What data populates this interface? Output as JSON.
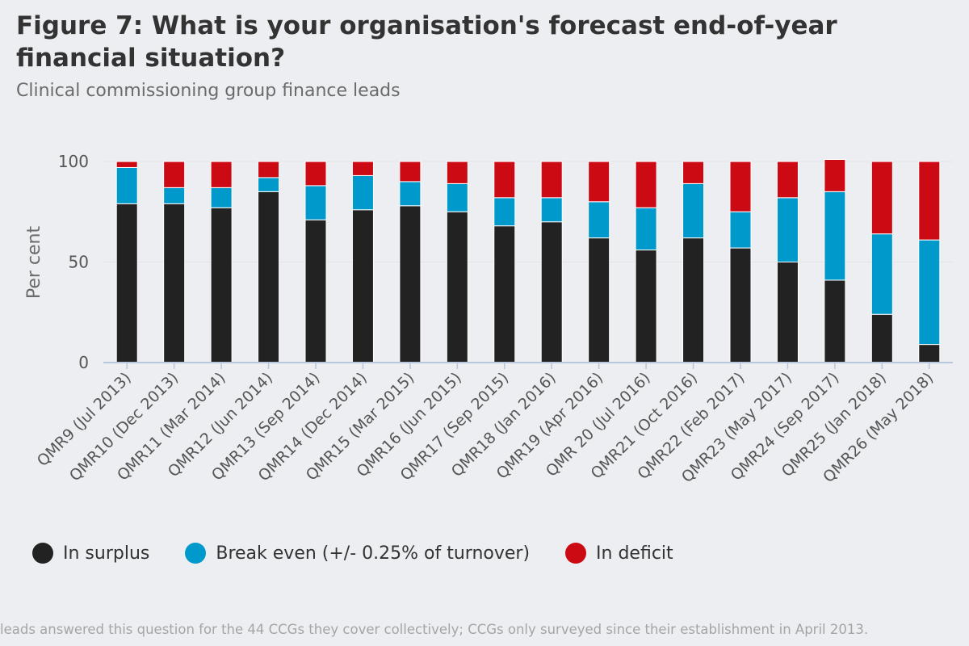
{
  "title": "Figure 7: What is your organisation's forecast end-of-year financial situation?",
  "subtitle": "Clinical commissioning group finance leads",
  "footnote": "leads answered this question for the 44 CCGs they cover collectively; CCGs only surveyed since their establishment in April 2013.",
  "colors": {
    "surplus": "#222222",
    "break_even": "#0099cc",
    "deficit": "#cc0a13",
    "axis": "#b8c8dc",
    "grid": "#e2e4e8",
    "tick_text": "#555555"
  },
  "chart_data": {
    "type": "bar",
    "stacked": true,
    "ylabel": "Per cent",
    "xlabel": "",
    "ylim": [
      0,
      100
    ],
    "yticks": [
      0,
      50,
      100
    ],
    "legend_position": "bottom",
    "categories": [
      "QMR9 (Jul 2013)",
      "QMR10 (Dec 2013)",
      "QMR11 (Mar 2014)",
      "QMR12 (Jun 2014)",
      "QMR13 (Sep 2014)",
      "QMR14 (Dec 2014)",
      "QMR15 (Mar 2015)",
      "QMR16 (Jun 2015)",
      "QMR17 (Sep 2015)",
      "QMR18 (Jan 2016)",
      "QMR19 (Apr 2016)",
      "QMR 20 (Jul 2016)",
      "QMR21 (Oct 2016)",
      "QMR22 (Feb 2017)",
      "QMR23 (May 2017)",
      "QMR24 (Sep 2017)",
      "QMR25 (Jan 2018)",
      "QMR26 (May 2018)"
    ],
    "series": [
      {
        "name": "In surplus",
        "key": "surplus",
        "values": [
          79,
          79,
          77,
          85,
          71,
          76,
          78,
          75,
          68,
          70,
          62,
          56,
          62,
          57,
          50,
          41,
          24,
          9
        ]
      },
      {
        "name": "Break even (+/- 0.25% of turnover)",
        "key": "break_even",
        "values": [
          18,
          8,
          10,
          7,
          17,
          17,
          12,
          14,
          14,
          12,
          18,
          21,
          27,
          18,
          32,
          44,
          40,
          52
        ]
      },
      {
        "name": "In deficit",
        "key": "deficit",
        "values": [
          3,
          13,
          13,
          8,
          12,
          7,
          10,
          11,
          18,
          18,
          20,
          23,
          11,
          25,
          18,
          16,
          36,
          39
        ]
      }
    ]
  }
}
